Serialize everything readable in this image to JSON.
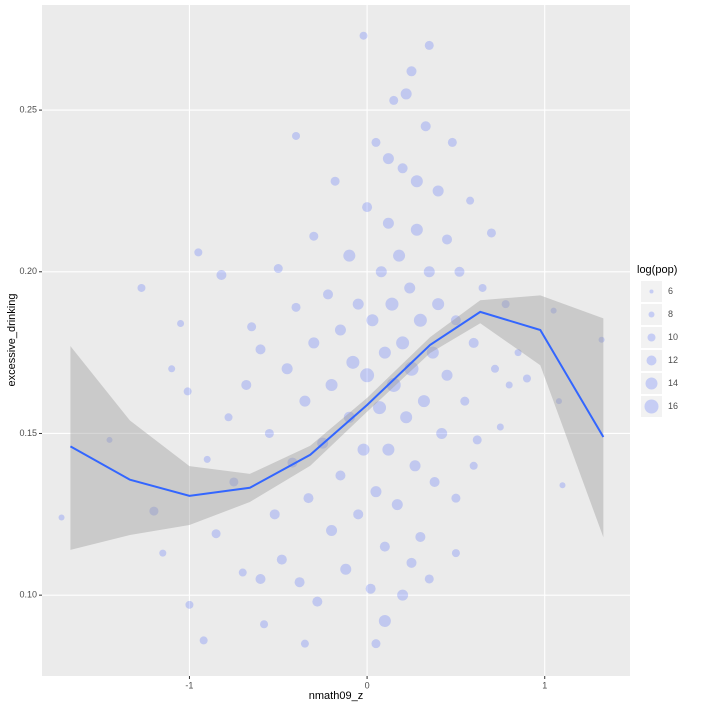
{
  "chart_data": {
    "type": "scatter",
    "x_label": "nmath09_z",
    "y_label": "excessive_drinking",
    "xlim": [
      -1.83,
      1.48
    ],
    "ylim": [
      0.075,
      0.2825
    ],
    "xticks": [
      -1,
      0,
      1
    ],
    "yticks": [
      {
        "value": 0.1,
        "label": "0.10"
      },
      0.15,
      {
        "value": 0.2,
        "label": "0.20"
      },
      0.25
    ],
    "grid": true,
    "color": "#1a3cff",
    "x": [
      -1.72,
      -1.27,
      -1.05,
      -0.95,
      -1.45,
      -1.1,
      -1.01,
      -0.9,
      -1.0,
      -0.92,
      -1.2,
      -1.15,
      -0.82,
      -0.78,
      -0.85,
      -0.75,
      -0.7,
      -0.68,
      -0.65,
      -0.6,
      -0.58,
      -0.55,
      -0.52,
      -0.5,
      -0.48,
      -0.45,
      -0.42,
      -0.4,
      -0.38,
      -0.4,
      -0.35,
      -0.33,
      -0.3,
      -0.3,
      -0.28,
      -0.25,
      -0.22,
      -0.2,
      -0.2,
      -0.18,
      -0.15,
      -0.15,
      -0.12,
      -0.1,
      -0.1,
      -0.08,
      -0.05,
      -0.05,
      -0.02,
      -0.02,
      0.0,
      0.0,
      0.02,
      0.03,
      0.05,
      0.05,
      0.07,
      0.08,
      0.1,
      0.1,
      0.12,
      0.12,
      0.14,
      0.15,
      0.15,
      0.17,
      0.18,
      0.2,
      0.2,
      0.2,
      0.22,
      0.24,
      0.25,
      0.25,
      0.27,
      0.28,
      0.3,
      0.3,
      0.32,
      0.33,
      0.35,
      0.35,
      0.37,
      0.38,
      0.4,
      0.4,
      0.42,
      0.45,
      0.45,
      0.48,
      0.5,
      0.5,
      0.52,
      0.55,
      0.58,
      0.6,
      0.62,
      0.65,
      0.7,
      0.72,
      0.75,
      0.78,
      0.8,
      0.85,
      0.9,
      1.05,
      1.08,
      1.1,
      1.32,
      0.05,
      0.1,
      0.25,
      0.35,
      0.5,
      0.6,
      -0.35,
      -0.6,
      0.22,
      0.28,
      0.12
    ],
    "y": [
      0.124,
      0.195,
      0.184,
      0.206,
      0.148,
      0.17,
      0.163,
      0.142,
      0.097,
      0.086,
      0.126,
      0.113,
      0.199,
      0.155,
      0.119,
      0.135,
      0.107,
      0.165,
      0.183,
      0.176,
      0.091,
      0.15,
      0.125,
      0.201,
      0.111,
      0.17,
      0.141,
      0.189,
      0.104,
      0.242,
      0.16,
      0.13,
      0.211,
      0.178,
      0.098,
      0.147,
      0.193,
      0.12,
      0.165,
      0.228,
      0.182,
      0.137,
      0.108,
      0.205,
      0.155,
      0.172,
      0.125,
      0.19,
      0.273,
      0.145,
      0.22,
      0.168,
      0.102,
      0.185,
      0.132,
      0.24,
      0.158,
      0.2,
      0.175,
      0.115,
      0.215,
      0.145,
      0.19,
      0.253,
      0.165,
      0.128,
      0.205,
      0.178,
      0.232,
      0.1,
      0.155,
      0.195,
      0.17,
      0.262,
      0.14,
      0.213,
      0.185,
      0.118,
      0.16,
      0.245,
      0.2,
      0.27,
      0.175,
      0.135,
      0.225,
      0.19,
      0.15,
      0.21,
      0.168,
      0.24,
      0.185,
      0.13,
      0.2,
      0.16,
      0.222,
      0.178,
      0.148,
      0.195,
      0.212,
      0.17,
      0.152,
      0.19,
      0.165,
      0.175,
      0.167,
      0.188,
      0.16,
      0.134,
      0.179,
      0.085,
      0.092,
      0.11,
      0.105,
      0.113,
      0.14,
      0.085,
      0.105,
      0.255,
      0.228,
      0.235
    ],
    "size": [
      8,
      10,
      9,
      10,
      8,
      9,
      10,
      9,
      10,
      10,
      11,
      9,
      12,
      10,
      11,
      11,
      10,
      12,
      11,
      12,
      10,
      11,
      12,
      11,
      12,
      13,
      12,
      11,
      12,
      10,
      13,
      12,
      11,
      13,
      12,
      13,
      12,
      13,
      14,
      11,
      13,
      12,
      13,
      14,
      13,
      15,
      12,
      13,
      10,
      14,
      12,
      16,
      12,
      14,
      13,
      11,
      15,
      13,
      14,
      12,
      13,
      14,
      15,
      11,
      16,
      13,
      14,
      15,
      12,
      13,
      14,
      13,
      16,
      12,
      13,
      14,
      15,
      12,
      14,
      12,
      13,
      11,
      14,
      12,
      13,
      14,
      13,
      12,
      13,
      11,
      12,
      11,
      12,
      11,
      10,
      12,
      11,
      10,
      11,
      10,
      9,
      10,
      9,
      9,
      10,
      8,
      8,
      8,
      8,
      11,
      14,
      12,
      11,
      10,
      10,
      10,
      12,
      13,
      14,
      13
    ],
    "smooth": {
      "color": "#3366ff",
      "x": [
        -1.67,
        -1.335,
        -1.0,
        -0.66,
        -0.32,
        0.0,
        0.355,
        0.637,
        0.975,
        1.33
      ],
      "y": [
        0.146,
        0.1357,
        0.1307,
        0.1332,
        0.1434,
        0.1588,
        0.1774,
        0.1876,
        0.182,
        0.1489
      ],
      "lower": [
        0.114,
        0.1186,
        0.1217,
        0.1288,
        0.14,
        0.1567,
        0.1749,
        0.1841,
        0.1711,
        0.1179
      ],
      "upper": [
        0.177,
        0.154,
        0.1399,
        0.1375,
        0.1462,
        0.161,
        0.1798,
        0.1912,
        0.1927,
        0.1856
      ]
    },
    "legend": {
      "title": "log(pop)",
      "values": [
        6,
        8,
        10,
        12,
        14,
        16
      ]
    }
  }
}
